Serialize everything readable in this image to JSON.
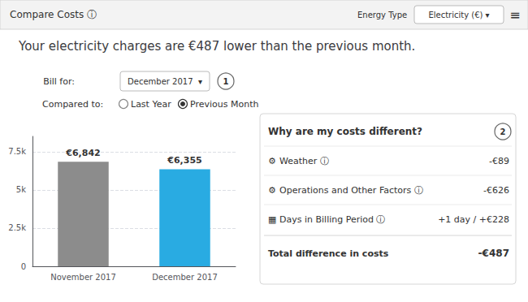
{
  "chart_data": {
    "type": "bar",
    "title": "Your electricity charges are €487 lower than the previous month.",
    "categories": [
      "November 2017",
      "December 2017"
    ],
    "values": [
      6842,
      6355
    ],
    "value_labels": [
      "€6,842",
      "€6,355"
    ],
    "colors": [
      "#8c8c8c",
      "#29abe2"
    ],
    "data_labels": true,
    "ylim": [
      0,
      8500
    ],
    "yticks": [
      0,
      {
        "value": 2500,
        "label": "2.5k"
      },
      {
        "value": 5000,
        "label": "5k"
      },
      {
        "value": 7500,
        "label": "7.5k"
      }
    ],
    "grid": true,
    "annotations": [
      "Compare Costs ⓘ",
      "Energy Type",
      "Electricity (€) ▾",
      "≡",
      "Bill for:",
      "December 2017  ▾",
      "1",
      "Compared to:",
      "Last Year",
      "Previous Month",
      "Why are my costs different?",
      "2",
      "⚙",
      "Weather ⓘ",
      "-€89",
      "⚙",
      "Operations and Other Factors ⓘ",
      "-€626",
      "▦",
      "Days in Billing Period ⓘ",
      "+1 day / +€228",
      "Total difference in costs",
      "-€487"
    ]
  }
}
